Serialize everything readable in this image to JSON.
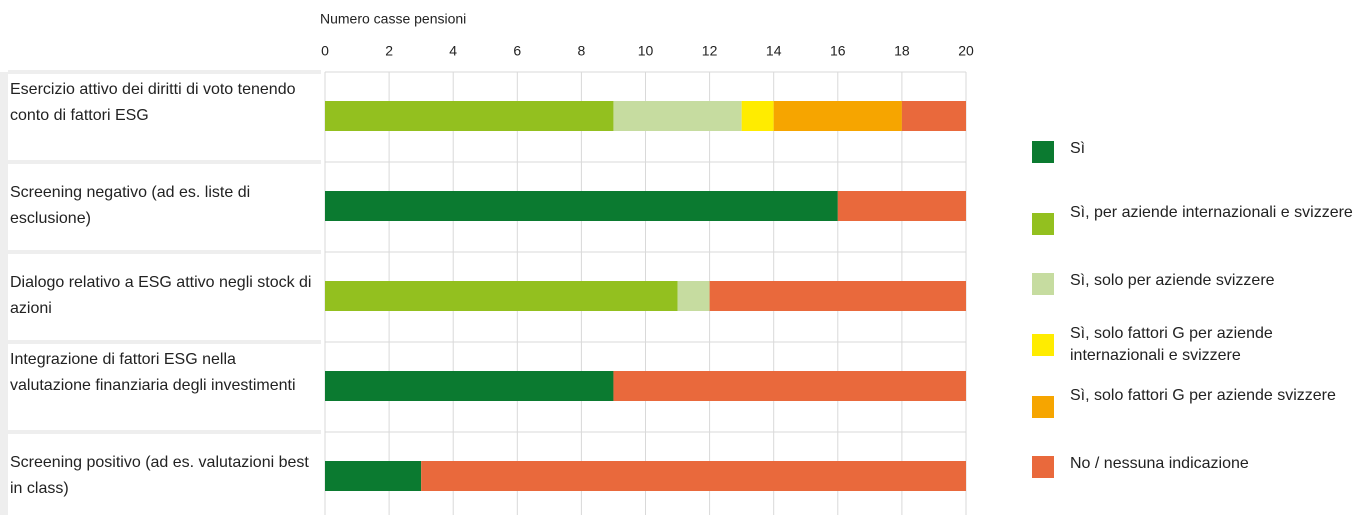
{
  "chart_data": {
    "type": "stacked_bar_horizontal",
    "xlabel": "Numero casse pensioni",
    "categories": [
      "Esercizio attivo dei diritti di voto tenendo conto di fattori ESG",
      "Screening negativo (ad es. liste di esclusione)",
      "Dialogo relativo a ESG attivo negli stock di azioni",
      "Integrazione di fattori ESG nella valutazione finanziaria degli investimenti",
      "Screening positivo (ad es. valutazioni best in class)"
    ],
    "series": [
      {
        "name": "Sì",
        "color": "#0b7a30",
        "values": [
          0,
          16,
          0,
          9,
          3
        ]
      },
      {
        "name": "Sì, per aziende internazionali e svizzere",
        "color": "#93c01f",
        "values": [
          9,
          0,
          11,
          0,
          0
        ]
      },
      {
        "name": "Sì, solo per aziende svizzere",
        "color": "#c6dca0",
        "values": [
          4,
          0,
          1,
          0,
          0
        ]
      },
      {
        "name": "Sì, solo fattori G per aziende internazionali e svizzere",
        "color": "#ffec00",
        "values": [
          1,
          0,
          0,
          0,
          0
        ]
      },
      {
        "name": "Sì, solo fattori G per aziende svizzere",
        "color": "#f6a500",
        "values": [
          4,
          0,
          0,
          0,
          0
        ]
      },
      {
        "name": "No / nessuna indicazione",
        "color": "#e9693c",
        "values": [
          2,
          4,
          8,
          11,
          17
        ]
      }
    ],
    "xlim": [
      0,
      20
    ],
    "xticks": [
      0,
      2,
      4,
      6,
      8,
      10,
      12,
      14,
      16,
      18,
      20
    ],
    "grid": true,
    "legend": "right"
  }
}
